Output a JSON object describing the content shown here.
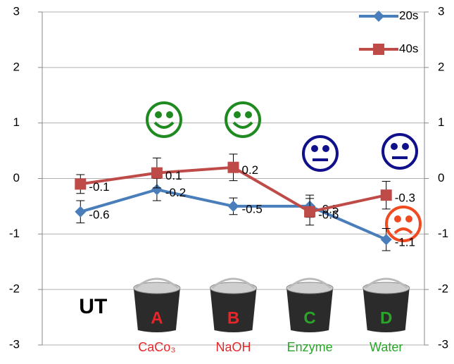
{
  "chart_data": {
    "type": "line",
    "categories": [
      "UT",
      "CaCo₃",
      "NaOH",
      "Enzyme",
      "Water"
    ],
    "category_colors": [
      "#000000",
      "#e8262a",
      "#e8262a",
      "#2aa52a",
      "#2aa52a"
    ],
    "bucket_labels": [
      "A",
      "B",
      "C",
      "D"
    ],
    "series": [
      {
        "name": "20s",
        "color": "#4a7ebb",
        "values": [
          -0.6,
          -0.2,
          -0.5,
          -0.5,
          -1.1
        ],
        "errors": [
          0.2,
          0.2,
          0.15,
          0.2,
          0.2
        ]
      },
      {
        "name": "40s",
        "color": "#be4b48",
        "values": [
          -0.1,
          0.1,
          0.2,
          -0.6,
          -0.3
        ],
        "errors": [
          0.17,
          0.27,
          0.24,
          0.24,
          0.25
        ]
      }
    ],
    "ylim": [
      -3,
      3
    ],
    "yticks": [
      -3,
      -2,
      -1,
      0,
      1,
      2,
      3
    ],
    "y2lim": [
      -3,
      3
    ],
    "y2ticks": [
      -3,
      -2,
      -1,
      0,
      1,
      2,
      3
    ],
    "grid": true,
    "legend": "top-right"
  }
}
